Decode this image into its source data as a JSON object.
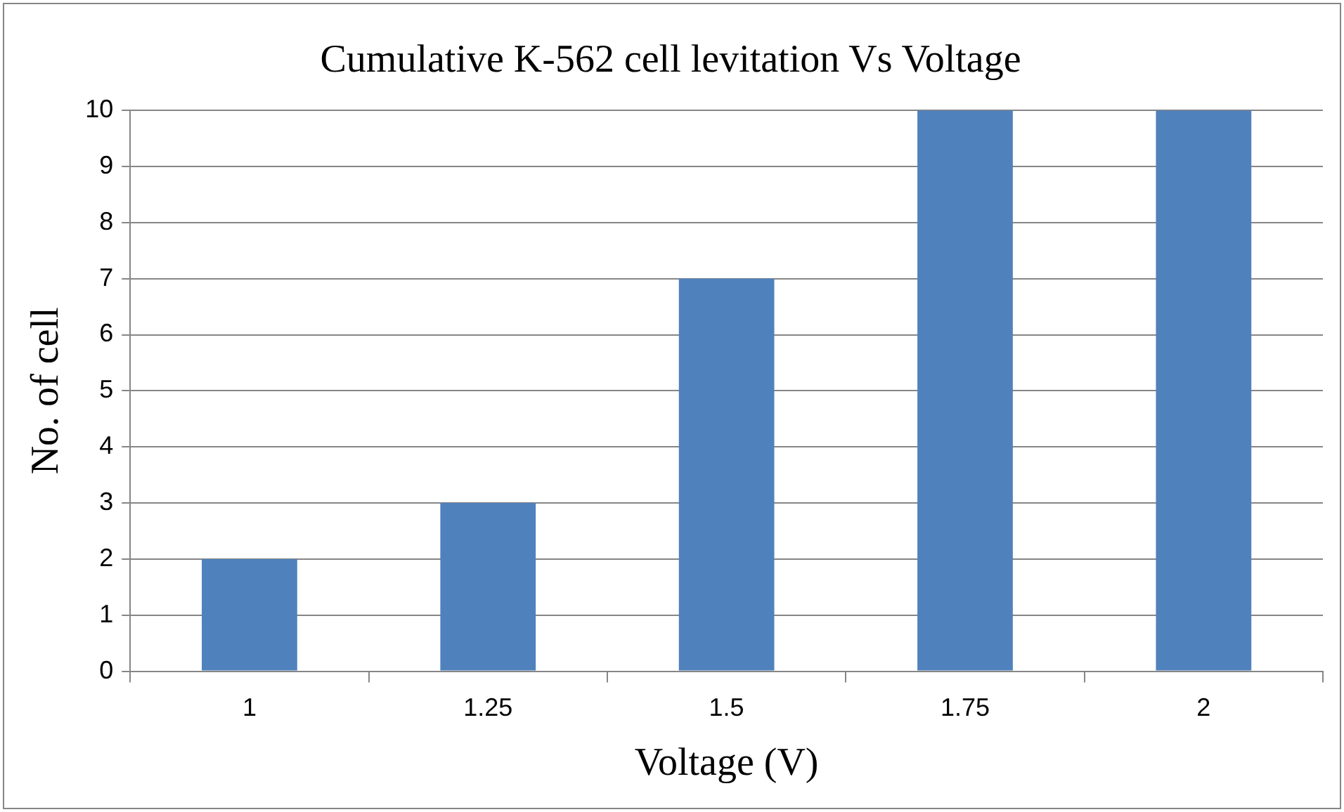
{
  "chart_data": {
    "type": "bar",
    "title": "Cumulative K-562 cell levitation Vs Voltage",
    "xlabel": "Voltage (V)",
    "ylabel": "No. of cell",
    "categories": [
      "1",
      "1.25",
      "1.5",
      "1.75",
      "2"
    ],
    "values": [
      2,
      3,
      7,
      10,
      10
    ],
    "color": "#4f81bd",
    "ylim": [
      0,
      10
    ],
    "yticks": [
      0,
      1,
      2,
      3,
      4,
      5,
      6,
      7,
      8,
      9,
      10
    ],
    "grid": "y"
  }
}
